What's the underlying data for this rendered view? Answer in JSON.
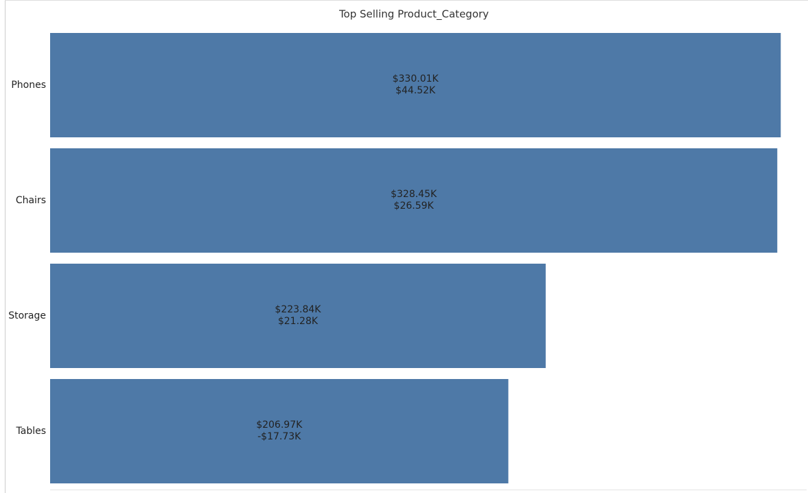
{
  "chart_data": {
    "type": "hbar",
    "title": "Top Selling Product_Category",
    "categories": [
      "Phones",
      "Chairs",
      "Storage",
      "Tables"
    ],
    "values": [
      330010,
      328450,
      223840,
      206970
    ],
    "value_labels": [
      "$330.01K",
      "$328.45K",
      "$223.84K",
      "$206.97K"
    ],
    "secondary_values": [
      44520,
      26590,
      21280,
      -17730
    ],
    "secondary_value_labels": [
      "$44.52K",
      "$26.59K",
      "$21.28K",
      "-$17.73K"
    ],
    "color": "#4e79a7",
    "xlim": [
      0,
      341700
    ]
  }
}
